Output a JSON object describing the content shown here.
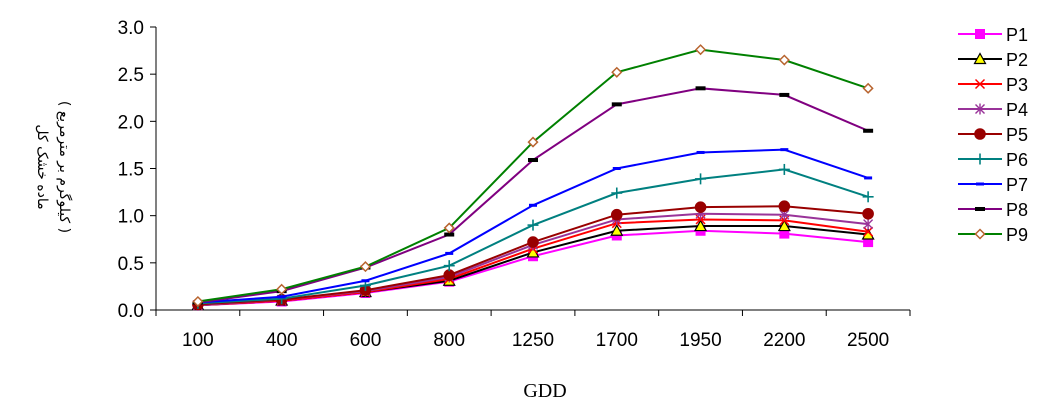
{
  "chart_data": {
    "type": "line",
    "xlabel": "GDD",
    "ylabel_line1": "ماده خشک کل",
    "ylabel_line2": "( کیلوگرم بر مترمربع )",
    "categories": [
      "100",
      "400",
      "600",
      "800",
      "1250",
      "1700",
      "1950",
      "2200",
      "2500"
    ],
    "ylim": [
      0,
      3.0
    ],
    "yticks": [
      "0.0",
      "0.5",
      "1.0",
      "1.5",
      "2.0",
      "2.5",
      "3.0"
    ],
    "grid": false,
    "legend_position": "right",
    "series": [
      {
        "name": "P1",
        "color": "#ff00ff",
        "marker": "square",
        "values": [
          0.05,
          0.09,
          0.18,
          0.3,
          0.57,
          0.79,
          0.84,
          0.81,
          0.72
        ]
      },
      {
        "name": "P2",
        "color": "#000000",
        "marker": "triangle",
        "values": [
          0.05,
          0.1,
          0.19,
          0.31,
          0.61,
          0.84,
          0.89,
          0.89,
          0.8
        ]
      },
      {
        "name": "P3",
        "color": "#ff0000",
        "marker": "x",
        "values": [
          0.05,
          0.1,
          0.19,
          0.33,
          0.65,
          0.92,
          0.96,
          0.95,
          0.83
        ]
      },
      {
        "name": "P4",
        "color": "#993399",
        "marker": "star",
        "values": [
          0.05,
          0.11,
          0.2,
          0.35,
          0.69,
          0.96,
          1.02,
          1.01,
          0.91
        ]
      },
      {
        "name": "P5",
        "color": "#990000",
        "marker": "circle",
        "values": [
          0.06,
          0.11,
          0.21,
          0.37,
          0.72,
          1.01,
          1.09,
          1.1,
          1.02
        ]
      },
      {
        "name": "P6",
        "color": "#008080",
        "marker": "plus",
        "values": [
          0.07,
          0.12,
          0.26,
          0.47,
          0.9,
          1.24,
          1.39,
          1.49,
          1.2
        ]
      },
      {
        "name": "P7",
        "color": "#0000ff",
        "marker": "dash",
        "values": [
          0.08,
          0.14,
          0.31,
          0.6,
          1.11,
          1.5,
          1.67,
          1.7,
          1.4
        ]
      },
      {
        "name": "P8",
        "color": "#800080",
        "marker": "hbar",
        "values": [
          0.08,
          0.2,
          0.45,
          0.8,
          1.59,
          2.18,
          2.35,
          2.28,
          1.9
        ]
      },
      {
        "name": "P9",
        "color": "#008000",
        "marker": "diamond",
        "values": [
          0.09,
          0.22,
          0.46,
          0.87,
          1.78,
          2.52,
          2.76,
          2.65,
          2.35
        ]
      }
    ]
  }
}
